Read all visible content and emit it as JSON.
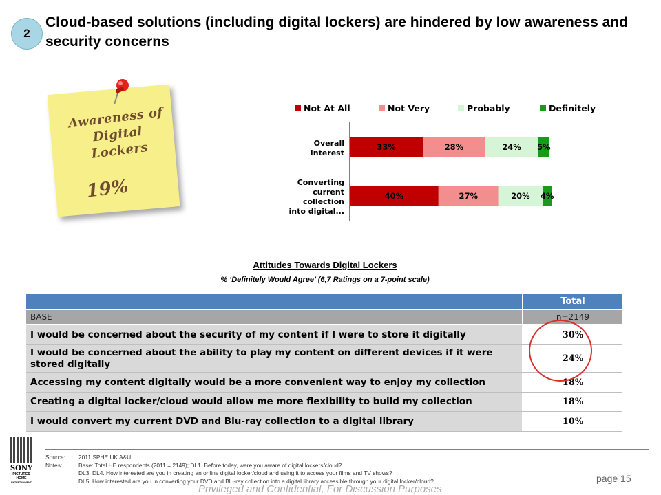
{
  "header": {
    "badge": "2",
    "title": "Cloud-based solutions (including digital lockers) are hindered by low awareness and security concerns"
  },
  "sticky_note": {
    "line1": "Awareness of",
    "line2": "Digital",
    "line3": "Lockers",
    "value": "19%"
  },
  "chart_data": {
    "type": "bar",
    "stacked": true,
    "orientation": "horizontal",
    "categories": [
      "Overall Interest",
      "Converting current collection into digital..."
    ],
    "category_lines": [
      [
        "Overall",
        "Interest"
      ],
      [
        "Converting",
        "current",
        "collection",
        "into digital..."
      ]
    ],
    "series": [
      {
        "name": "Not At All",
        "values": [
          33,
          40
        ],
        "labels": [
          "33%",
          "40%"
        ],
        "color": "#c00000"
      },
      {
        "name": "Not Very",
        "values": [
          28,
          27
        ],
        "labels": [
          "28%",
          "27%"
        ],
        "color": "#f28e8e"
      },
      {
        "name": "Probably",
        "values": [
          24,
          20
        ],
        "labels": [
          "24%",
          "20%"
        ],
        "color": "#d6f5d6"
      },
      {
        "name": "Definitely",
        "values": [
          5,
          4
        ],
        "labels": [
          "5%",
          "4%"
        ],
        "color": "#1a9a1a"
      }
    ],
    "legend": "top",
    "grid": false
  },
  "table": {
    "title": "Attitudes  Towards Digital Lockers",
    "subtitle": "%  ‘Definitely  Would Agree’ (6,7 Ratings on a 7-point scale)",
    "header_col": "Total",
    "base_label": "BASE",
    "base_value": "n=2149",
    "rows": [
      {
        "label": "I would be concerned about the security of my content if I were to store it digitally",
        "value": "30%"
      },
      {
        "label": "I would be concerned about the ability to play my content on different devices if it were stored digitally",
        "value": "24%"
      },
      {
        "label": "Accessing my content digitally would be a more convenient way to enjoy my collection",
        "value": "18%"
      },
      {
        "label": "Creating a digital locker/cloud would allow me more flexibility to build my collection",
        "value": "18%"
      },
      {
        "label": "I would convert my current DVD and Blu-ray  collection to a digital library",
        "value": "10%"
      }
    ]
  },
  "logo": {
    "brand": "SONY",
    "line2": "PICTURES",
    "line3": "HOME",
    "line4": "ENTERTAINMENT"
  },
  "footer": {
    "source_label": "Source:",
    "source_text": "2011 SPHE UK A&U",
    "notes_label": "Notes:",
    "note1": "Base: Total HE respondents (2011 = 2149); DL1. Before today, were you aware of digital lockers/cloud?",
    "note2": "DL3; DL4. How interested are you in creating an online digital locker/cloud and using it to access your films and TV shows?",
    "note3": "DL5. How interested are you in converting your DVD and Blu-ray collection into a digital library accessible through your digital locker/cloud?",
    "page": "page 15",
    "privileged": "Privileged and Confidential, For Discussion Purposes"
  }
}
